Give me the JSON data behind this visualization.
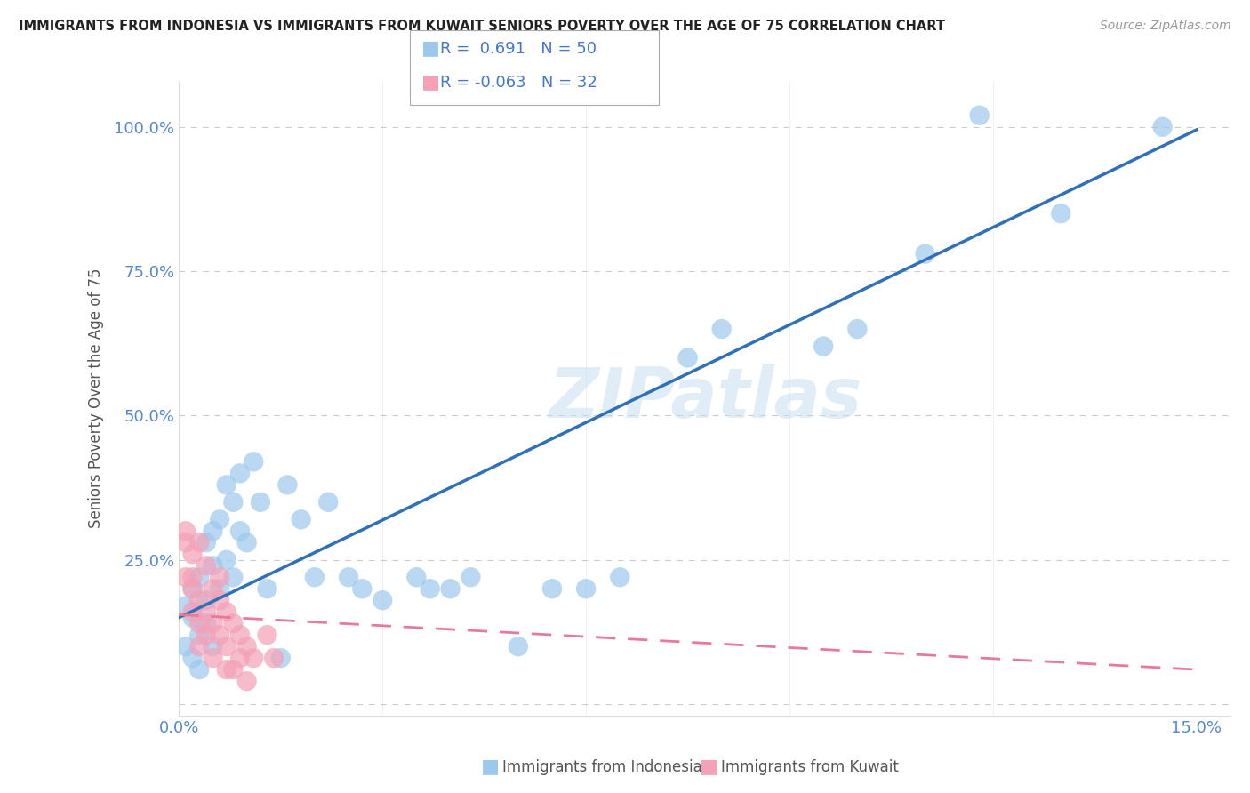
{
  "title": "IMMIGRANTS FROM INDONESIA VS IMMIGRANTS FROM KUWAIT SENIORS POVERTY OVER THE AGE OF 75 CORRELATION CHART",
  "source": "Source: ZipAtlas.com",
  "ylabel": "Seniors Poverty Over the Age of 75",
  "xlim": [
    0.0,
    0.155
  ],
  "ylim": [
    -0.02,
    1.08
  ],
  "xtick_positions": [
    0.0,
    0.03,
    0.06,
    0.09,
    0.12,
    0.15
  ],
  "xtick_labels": [
    "0.0%",
    "",
    "",
    "",
    "",
    "15.0%"
  ],
  "ytick_positions": [
    0.0,
    0.25,
    0.5,
    0.75,
    1.0
  ],
  "ytick_labels": [
    "",
    "25.0%",
    "50.0%",
    "75.0%",
    "100.0%"
  ],
  "indonesia_color": "#9DC8ED",
  "kuwait_color": "#F4A0B5",
  "indonesia_R": 0.691,
  "indonesia_N": 50,
  "kuwait_R": -0.063,
  "kuwait_N": 32,
  "background_color": "#ffffff",
  "watermark": "ZIPatlas",
  "indonesia_scatter": [
    [
      0.001,
      0.17
    ],
    [
      0.001,
      0.1
    ],
    [
      0.002,
      0.15
    ],
    [
      0.002,
      0.08
    ],
    [
      0.002,
      0.2
    ],
    [
      0.003,
      0.12
    ],
    [
      0.003,
      0.22
    ],
    [
      0.003,
      0.06
    ],
    [
      0.004,
      0.18
    ],
    [
      0.004,
      0.14
    ],
    [
      0.004,
      0.28
    ],
    [
      0.005,
      0.1
    ],
    [
      0.005,
      0.3
    ],
    [
      0.005,
      0.24
    ],
    [
      0.006,
      0.2
    ],
    [
      0.006,
      0.32
    ],
    [
      0.007,
      0.38
    ],
    [
      0.007,
      0.25
    ],
    [
      0.008,
      0.22
    ],
    [
      0.008,
      0.35
    ],
    [
      0.009,
      0.4
    ],
    [
      0.009,
      0.3
    ],
    [
      0.01,
      0.28
    ],
    [
      0.011,
      0.42
    ],
    [
      0.012,
      0.35
    ],
    [
      0.013,
      0.2
    ],
    [
      0.015,
      0.08
    ],
    [
      0.016,
      0.38
    ],
    [
      0.018,
      0.32
    ],
    [
      0.02,
      0.22
    ],
    [
      0.022,
      0.35
    ],
    [
      0.025,
      0.22
    ],
    [
      0.027,
      0.2
    ],
    [
      0.03,
      0.18
    ],
    [
      0.035,
      0.22
    ],
    [
      0.037,
      0.2
    ],
    [
      0.04,
      0.2
    ],
    [
      0.043,
      0.22
    ],
    [
      0.05,
      0.1
    ],
    [
      0.055,
      0.2
    ],
    [
      0.06,
      0.2
    ],
    [
      0.065,
      0.22
    ],
    [
      0.075,
      0.6
    ],
    [
      0.08,
      0.65
    ],
    [
      0.095,
      0.62
    ],
    [
      0.1,
      0.65
    ],
    [
      0.11,
      0.78
    ],
    [
      0.118,
      1.02
    ],
    [
      0.13,
      0.85
    ],
    [
      0.145,
      1.0
    ]
  ],
  "kuwait_scatter": [
    [
      0.001,
      0.28
    ],
    [
      0.001,
      0.22
    ],
    [
      0.001,
      0.3
    ],
    [
      0.002,
      0.26
    ],
    [
      0.002,
      0.2
    ],
    [
      0.002,
      0.16
    ],
    [
      0.002,
      0.22
    ],
    [
      0.003,
      0.28
    ],
    [
      0.003,
      0.18
    ],
    [
      0.003,
      0.14
    ],
    [
      0.003,
      0.1
    ],
    [
      0.004,
      0.24
    ],
    [
      0.004,
      0.16
    ],
    [
      0.004,
      0.12
    ],
    [
      0.005,
      0.2
    ],
    [
      0.005,
      0.14
    ],
    [
      0.005,
      0.08
    ],
    [
      0.006,
      0.18
    ],
    [
      0.006,
      0.22
    ],
    [
      0.006,
      0.12
    ],
    [
      0.007,
      0.16
    ],
    [
      0.007,
      0.1
    ],
    [
      0.007,
      0.06
    ],
    [
      0.008,
      0.14
    ],
    [
      0.008,
      0.06
    ],
    [
      0.009,
      0.12
    ],
    [
      0.009,
      0.08
    ],
    [
      0.01,
      0.1
    ],
    [
      0.01,
      0.04
    ],
    [
      0.011,
      0.08
    ],
    [
      0.013,
      0.12
    ],
    [
      0.014,
      0.08
    ]
  ],
  "grid_color": "#cccccc",
  "trend_blue_color": "#3070B8",
  "trend_pink_color": "#E8799A",
  "indo_trendline": [
    0.0,
    0.15,
    0.15,
    0.995
  ],
  "kuwait_trendline": [
    0.0,
    0.155,
    0.15,
    0.06
  ]
}
